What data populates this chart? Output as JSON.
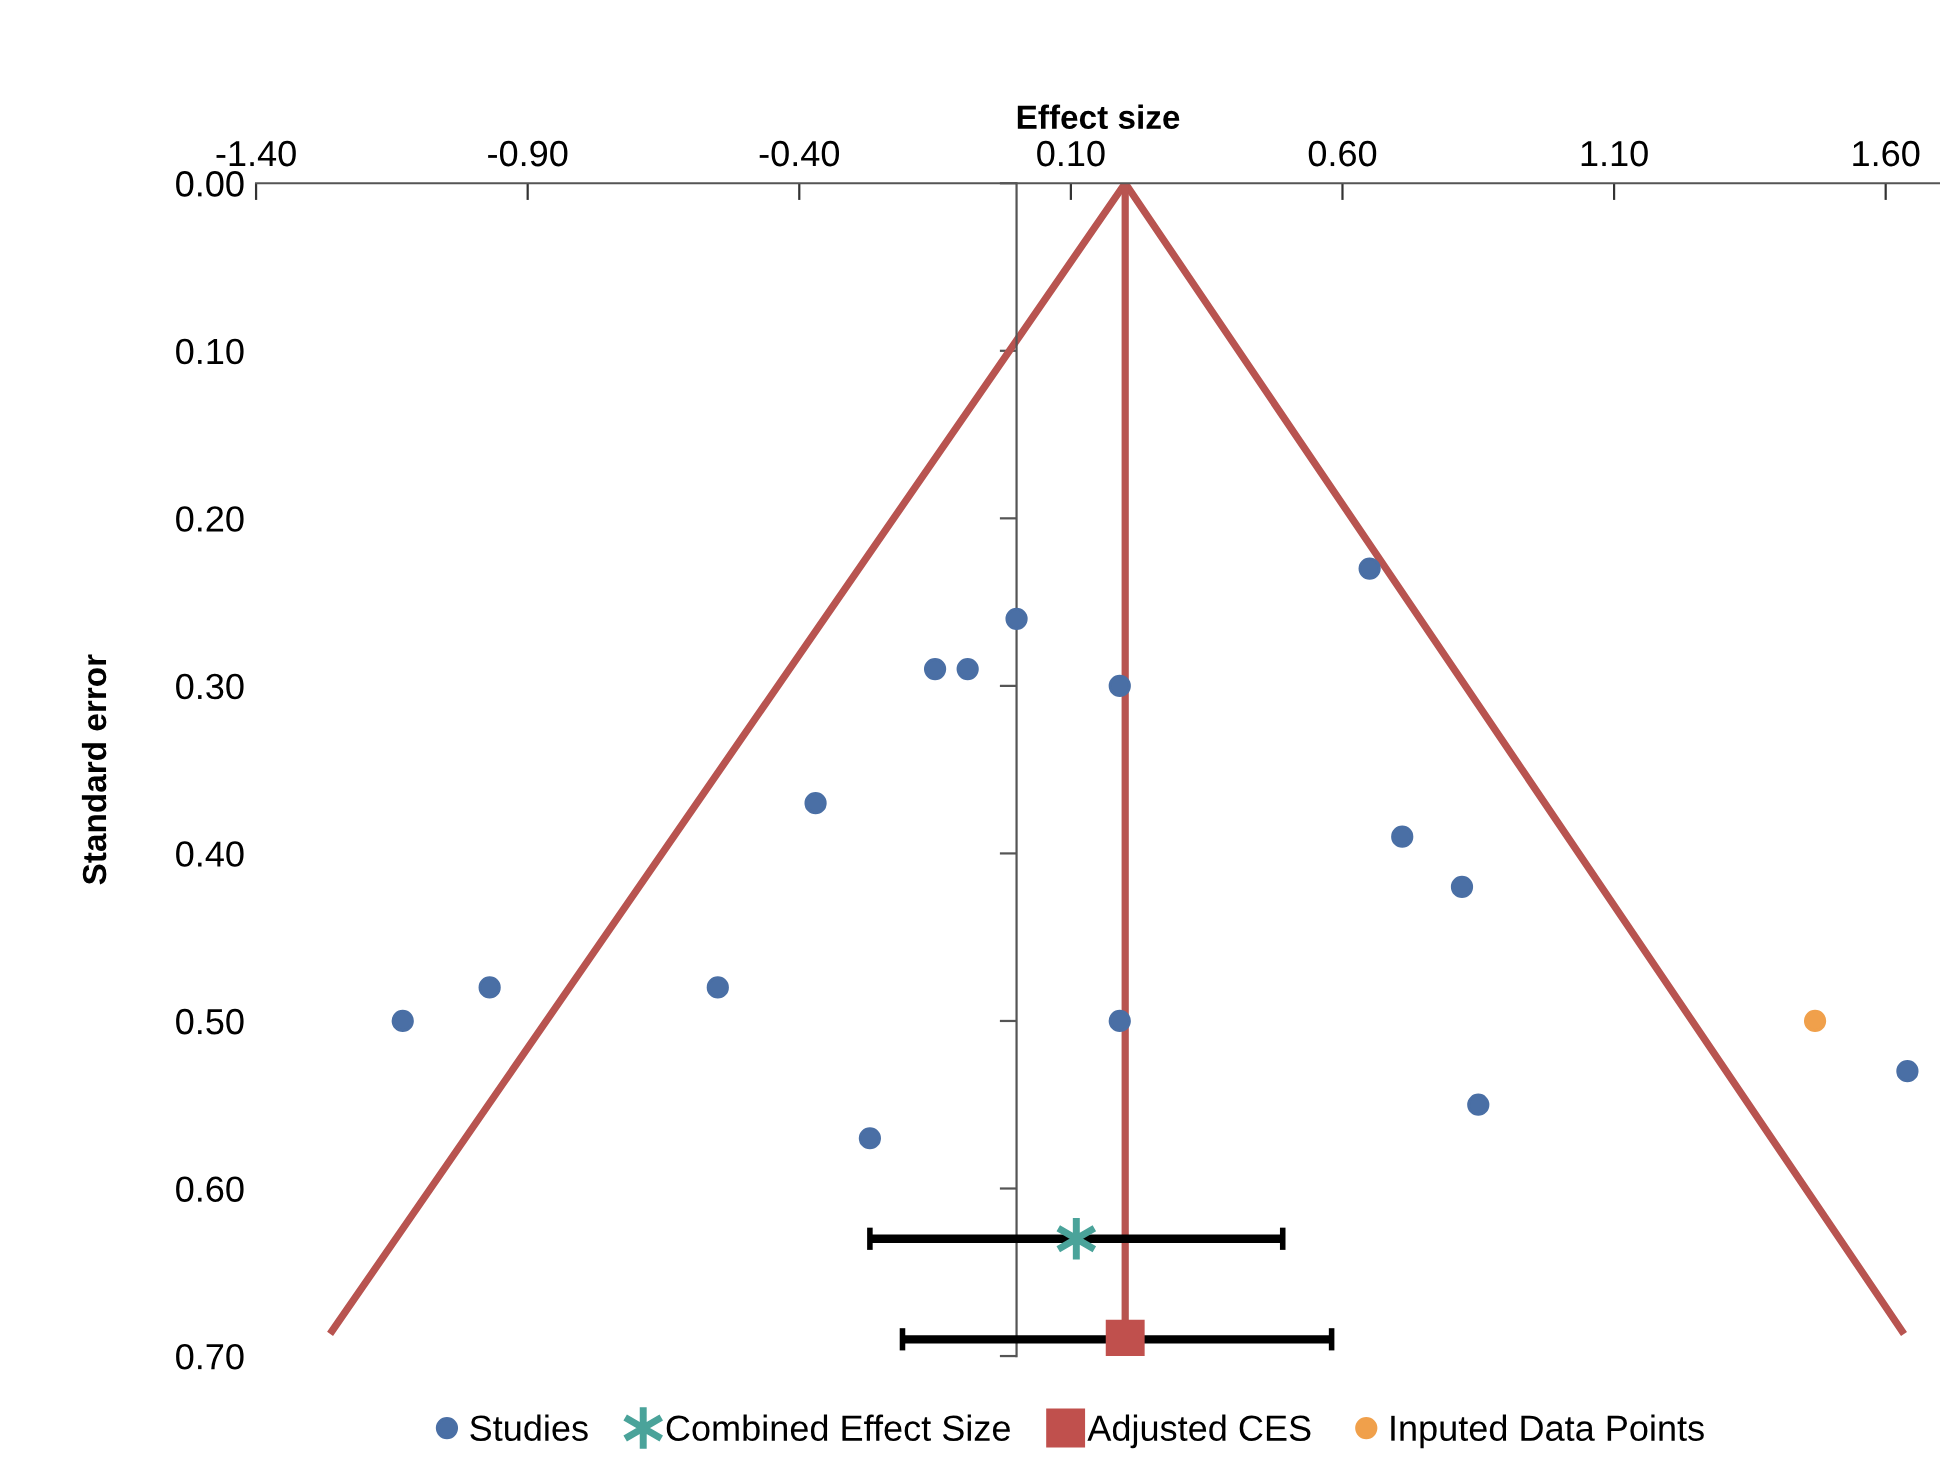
{
  "chart_data": {
    "type": "scatter",
    "xlabel": "Effect size",
    "ylabel": "Standard error",
    "xlim": [
      -1.4,
      1.7
    ],
    "xticks": [
      {
        "value": -1.4,
        "label": "-1.40"
      },
      {
        "value": -0.9,
        "label": "-0.90"
      },
      {
        "value": -0.4,
        "label": "-0.40"
      },
      {
        "value": 0.1,
        "label": "0.10"
      },
      {
        "value": 0.6,
        "label": "0.60"
      },
      {
        "value": 1.1,
        "label": "1.10"
      },
      {
        "value": 1.6,
        "label": "1.60"
      }
    ],
    "ylim": [
      0.7,
      0
    ],
    "yticks": [
      {
        "value": 0,
        "label": "0.00"
      },
      {
        "value": 0.1,
        "label": "0.10"
      },
      {
        "value": 0.2,
        "label": "0.20"
      },
      {
        "value": 0.3,
        "label": "0.30"
      },
      {
        "value": 0.4,
        "label": "0.40"
      },
      {
        "value": 0.5,
        "label": "0.50"
      },
      {
        "value": 0.6,
        "label": "0.60"
      },
      {
        "value": 0.7,
        "label": "0.70"
      }
    ],
    "grid": false,
    "legend": "bottom",
    "series": [
      {
        "type": "line",
        "color": "#b85450",
        "marker": "none",
        "line_style": "solid",
        "x": [
          -1.26,
          0.2,
          1.63
        ],
        "values": [
          0.685,
          0,
          0.685
        ]
      },
      {
        "type": "line",
        "color": "#b85450",
        "marker": "none",
        "line_style": "solid",
        "x": [
          0.2,
          0.2
        ],
        "values": [
          0,
          0.69
        ]
      },
      {
        "name": "Studies",
        "color": "#4a6fa5",
        "marker": "circle",
        "x": [
          -1.13,
          -0.97,
          -0.55,
          -0.37,
          -0.15,
          -0.09,
          0.0,
          -0.27,
          0.19,
          0.19,
          0.65,
          0.71,
          0.82,
          0.85,
          1.64
        ],
        "values": [
          0.5,
          0.48,
          0.48,
          0.37,
          0.29,
          0.29,
          0.26,
          0.57,
          0.3,
          0.5,
          0.23,
          0.39,
          0.42,
          0.55,
          0.53
        ]
      },
      {
        "name": "Combined Effect Size",
        "color": "#4aa39a",
        "marker": "cross",
        "x": [
          0.11
        ],
        "values": [
          0.63
        ],
        "xerrors": [
          [
            -0.27,
            0.49
          ]
        ]
      },
      {
        "name": "Adjusted CES",
        "color": "#c0504d",
        "marker": "square",
        "x": [
          0.2
        ],
        "values": [
          0.69
        ],
        "xerrors": [
          [
            -0.21,
            0.58
          ]
        ]
      },
      {
        "name": "Inputed Data Points",
        "color": "#f0a04b",
        "marker": "circle",
        "x": [
          1.47
        ],
        "values": [
          0.5
        ]
      }
    ]
  }
}
